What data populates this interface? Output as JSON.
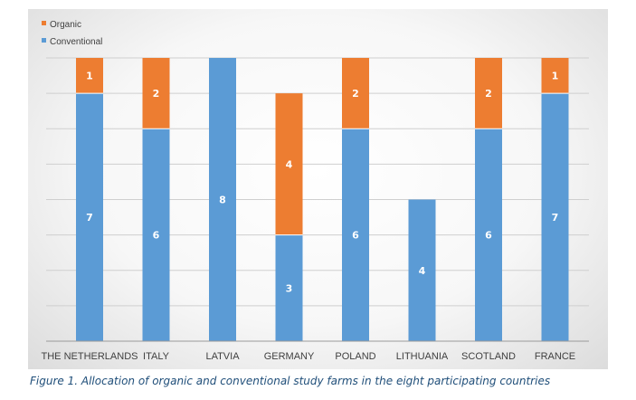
{
  "caption": "Figure 1. Allocation of organic and conventional study farms in the eight participating countries",
  "chart_data": {
    "type": "bar",
    "stacked": true,
    "categories": [
      "THE NETHERLANDS",
      "ITALY",
      "LATVIA",
      "GERMANY",
      "POLAND",
      "LITHUANIA",
      "SCOTLAND",
      "FRANCE"
    ],
    "series": [
      {
        "name": "Conventional",
        "color": "#5b9bd5",
        "values": [
          7,
          6,
          8,
          3,
          6,
          4,
          6,
          7
        ]
      },
      {
        "name": "Organic",
        "color": "#ed7d31",
        "values": [
          1,
          2,
          0,
          4,
          2,
          0,
          2,
          1
        ]
      }
    ],
    "ylim": [
      0,
      8
    ],
    "grid": true,
    "legend": "top-left",
    "data_labels": true
  }
}
